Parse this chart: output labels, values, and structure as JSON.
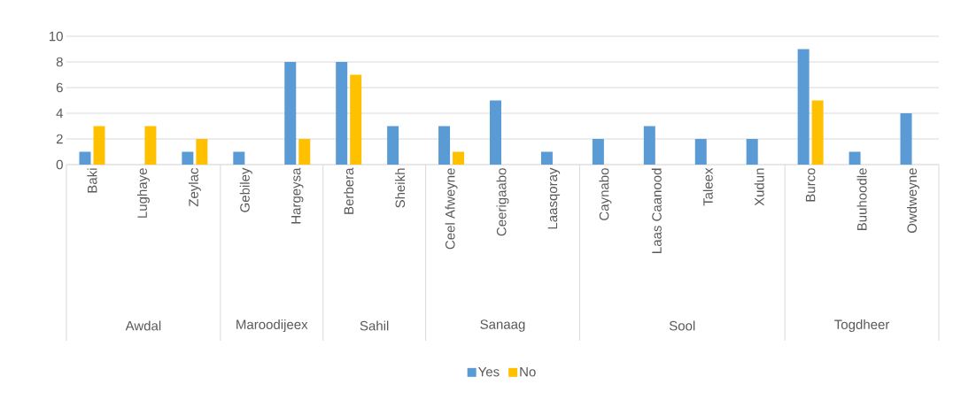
{
  "chart_data": {
    "type": "bar",
    "categories": [
      "Baki",
      "Lughaye",
      "Zeylac",
      "Gebiley",
      "Hargeysa",
      "Berbera",
      "Sheikh",
      "Ceel Afweyne",
      "Ceerigaabo",
      "Laasqoray",
      "Caynabo",
      "Laas Caanood",
      "Taleex",
      "Xudun",
      "Burco",
      "Buuhoodle",
      "Owdweyne"
    ],
    "series": [
      {
        "name": "Yes",
        "color": "#5b9bd5",
        "values": [
          1,
          null,
          1,
          1,
          8,
          8,
          3,
          3,
          5,
          1,
          2,
          3,
          2,
          2,
          9,
          1,
          4
        ]
      },
      {
        "name": "No",
        "color": "#ffc000",
        "values": [
          3,
          3,
          2,
          null,
          2,
          7,
          null,
          1,
          null,
          null,
          null,
          null,
          null,
          null,
          5,
          null,
          null
        ]
      }
    ],
    "ylim": [
      0,
      10
    ],
    "yticks": [
      0,
      2,
      4,
      6,
      8,
      10
    ],
    "grid": "y",
    "legend": "bottom",
    "annotations": [
      "Awdal",
      "Maroodijeex",
      "Sahil",
      "Sanaag",
      "Sool",
      "Togdheer"
    ]
  }
}
